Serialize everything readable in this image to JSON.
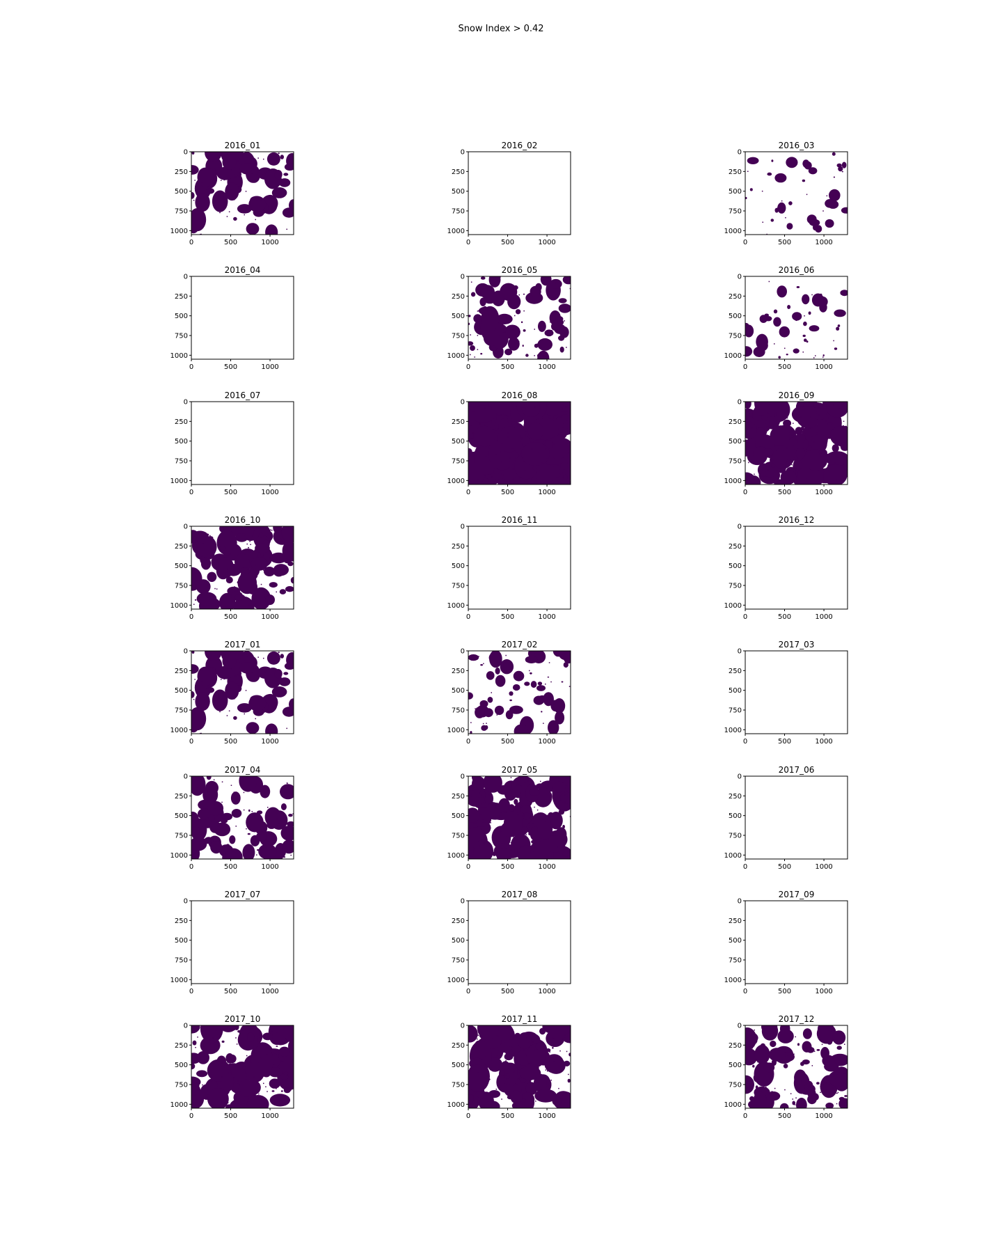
{
  "figure": {
    "title": "Snow Index > 0.42"
  },
  "chart_data": {
    "type": "heatmap",
    "layout": "8 rows x 3 columns grid of binary image panels",
    "colormap": {
      "masked": "#440154",
      "unmasked": "#ffffff"
    },
    "x_range": [
      0,
      1300
    ],
    "y_range": [
      1050,
      0
    ],
    "x_ticks": [
      "0",
      "500",
      "1000"
    ],
    "y_ticks": [
      "0",
      "250",
      "500",
      "750",
      "1000"
    ],
    "grid": false,
    "legend": "none",
    "panels": [
      {
        "title": "2016_01",
        "coverage": 0.28,
        "pattern": "a"
      },
      {
        "title": "2016_02",
        "coverage": 0.0,
        "pattern": "none"
      },
      {
        "title": "2016_03",
        "coverage": 0.08,
        "pattern": "c"
      },
      {
        "title": "2016_04",
        "coverage": 0.0,
        "pattern": "none"
      },
      {
        "title": "2016_05",
        "coverage": 0.3,
        "pattern": "d"
      },
      {
        "title": "2016_06",
        "coverage": 0.12,
        "pattern": "e"
      },
      {
        "title": "2016_07",
        "coverage": 0.0,
        "pattern": "none"
      },
      {
        "title": "2016_08",
        "coverage": 0.75,
        "pattern": "f"
      },
      {
        "title": "2016_09",
        "coverage": 0.6,
        "pattern": "g"
      },
      {
        "title": "2016_10",
        "coverage": 0.42,
        "pattern": "h"
      },
      {
        "title": "2016_11",
        "coverage": 0.0,
        "pattern": "none"
      },
      {
        "title": "2016_12",
        "coverage": 0.0,
        "pattern": "none"
      },
      {
        "title": "2017_01",
        "coverage": 0.28,
        "pattern": "a"
      },
      {
        "title": "2017_02",
        "coverage": 0.2,
        "pattern": "b"
      },
      {
        "title": "2017_03",
        "coverage": 0.0,
        "pattern": "none"
      },
      {
        "title": "2017_04",
        "coverage": 0.32,
        "pattern": "i"
      },
      {
        "title": "2017_05",
        "coverage": 0.55,
        "pattern": "j"
      },
      {
        "title": "2017_06",
        "coverage": 0.0,
        "pattern": "none"
      },
      {
        "title": "2017_07",
        "coverage": 0.0,
        "pattern": "none"
      },
      {
        "title": "2017_08",
        "coverage": 0.0,
        "pattern": "none"
      },
      {
        "title": "2017_09",
        "coverage": 0.0,
        "pattern": "none"
      },
      {
        "title": "2017_10",
        "coverage": 0.52,
        "pattern": "k"
      },
      {
        "title": "2017_11",
        "coverage": 0.48,
        "pattern": "l"
      },
      {
        "title": "2017_12",
        "coverage": 0.38,
        "pattern": "m"
      }
    ]
  }
}
